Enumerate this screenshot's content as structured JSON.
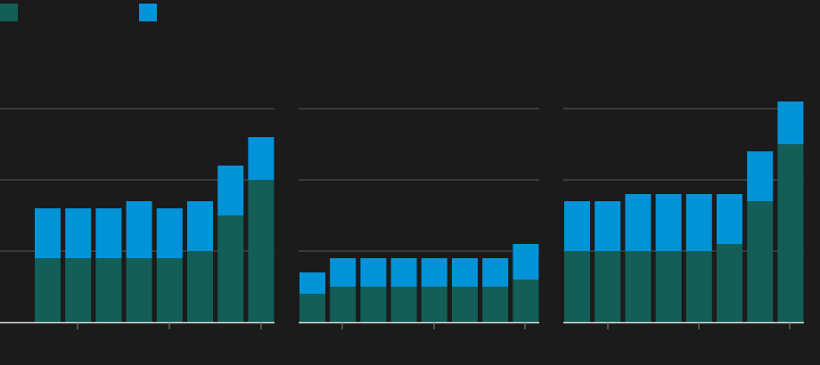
{
  "legend": {
    "items": [
      {
        "label": "",
        "color": "#135e56"
      },
      {
        "label": "",
        "color": "#0093d8"
      }
    ],
    "placement": "top-left"
  },
  "chart_data": [
    {
      "type": "bar",
      "stacked": true,
      "ylim": [
        0,
        4
      ],
      "gridlines": [
        1,
        2,
        3
      ],
      "series": [
        {
          "color": "#135e56",
          "values": [
            0.9,
            0.9,
            0.9,
            0.9,
            0.9,
            1.0,
            1.5,
            2.0
          ]
        },
        {
          "color": "#0093d8",
          "values": [
            0.7,
            0.7,
            0.7,
            0.8,
            0.7,
            0.7,
            0.7,
            0.6
          ]
        }
      ]
    },
    {
      "type": "bar",
      "stacked": true,
      "ylim": [
        0,
        4
      ],
      "gridlines": [
        1,
        2,
        3
      ],
      "series": [
        {
          "color": "#135e56",
          "values": [
            0.4,
            0.5,
            0.5,
            0.5,
            0.5,
            0.5,
            0.5,
            0.6
          ]
        },
        {
          "color": "#0093d8",
          "values": [
            0.3,
            0.4,
            0.4,
            0.4,
            0.4,
            0.4,
            0.4,
            0.5
          ]
        }
      ]
    },
    {
      "type": "bar",
      "stacked": true,
      "ylim": [
        0,
        4
      ],
      "gridlines": [
        1,
        2,
        3
      ],
      "series": [
        {
          "color": "#135e56",
          "values": [
            1.0,
            1.0,
            1.0,
            1.0,
            1.0,
            1.1,
            1.7,
            2.5
          ]
        },
        {
          "color": "#0093d8",
          "values": [
            0.7,
            0.7,
            0.8,
            0.8,
            0.8,
            0.7,
            0.7,
            0.6
          ]
        }
      ]
    }
  ]
}
